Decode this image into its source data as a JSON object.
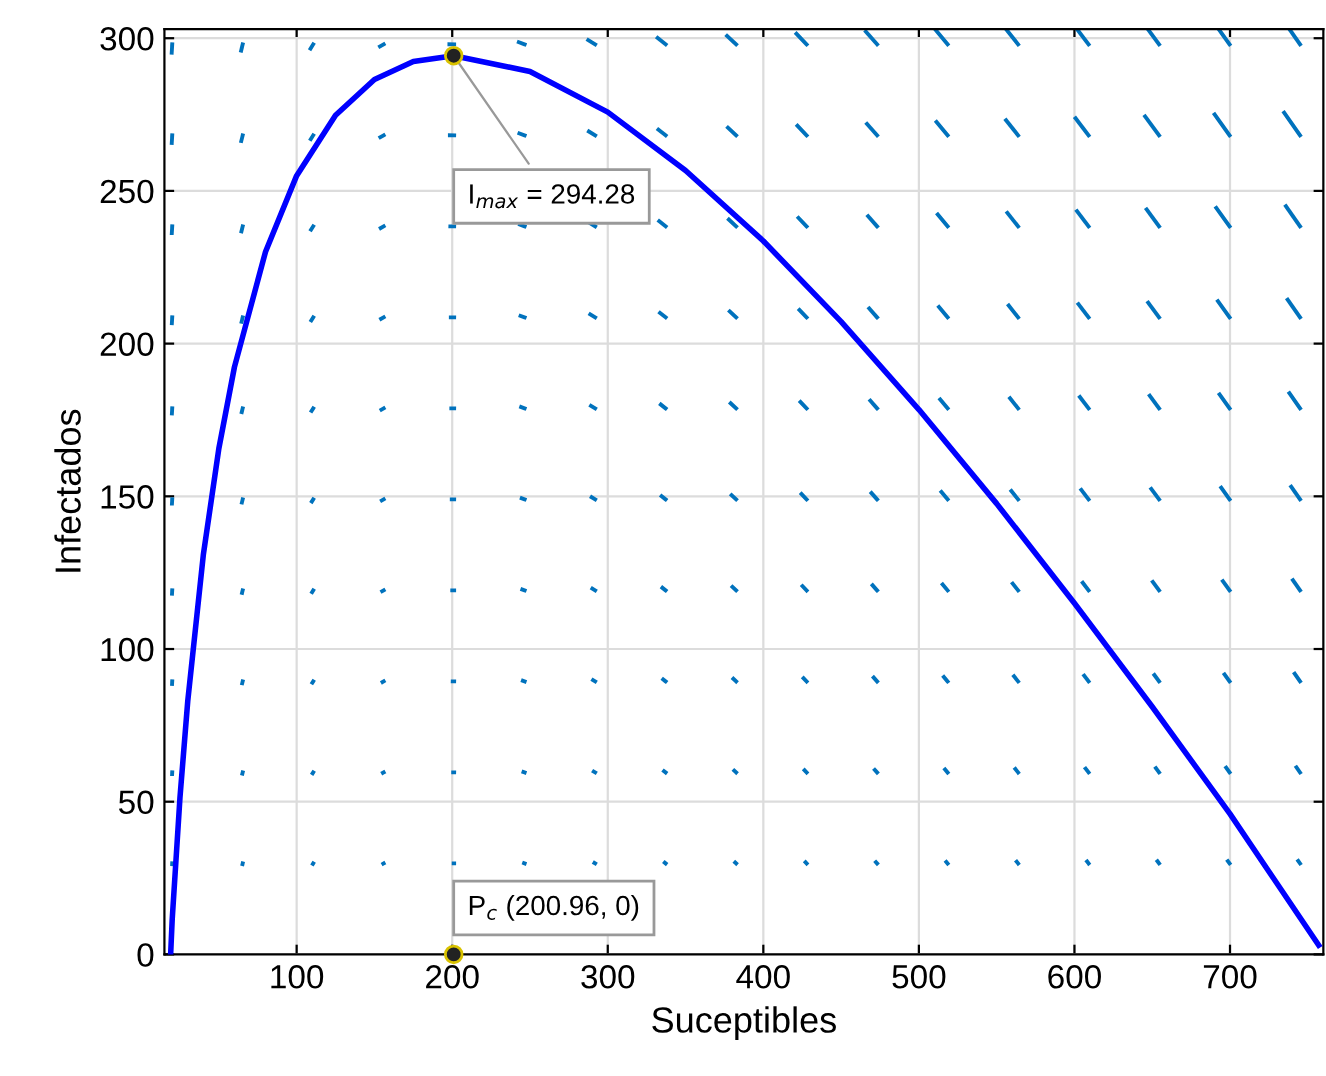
{
  "chart_data": {
    "type": "line",
    "xlabel": "Suceptibles",
    "ylabel": "Infectados",
    "xlim": [
      15,
      760
    ],
    "ylim": [
      0,
      303
    ],
    "xticks": [
      100,
      200,
      300,
      400,
      500,
      600,
      700
    ],
    "yticks": [
      0,
      50,
      100,
      150,
      200,
      250,
      300
    ],
    "grid": true,
    "series": [
      {
        "color": "#0000ff",
        "x": [
          19,
          20,
          25,
          30,
          40,
          50,
          60,
          80,
          100,
          125,
          150,
          175,
          200.96,
          250,
          300,
          350,
          400,
          450,
          500,
          550,
          600,
          650,
          700,
          757
        ],
        "values": [
          0,
          11.5,
          51.4,
          83,
          130.8,
          165.7,
          192.3,
          230.1,
          255,
          274.8,
          286.5,
          292.4,
          294.28,
          289.1,
          275.8,
          256.7,
          233.6,
          207.2,
          178.4,
          147.6,
          115,
          81.1,
          46,
          3
        ]
      }
    ],
    "annotations": [
      {
        "text": "I$_{max}$ = 294.28",
        "x": 200.96,
        "y": 294.28
      },
      {
        "text": "P$_{c}$ (200.96, 0)",
        "x": 200.96,
        "y": 0
      }
    ]
  }
}
